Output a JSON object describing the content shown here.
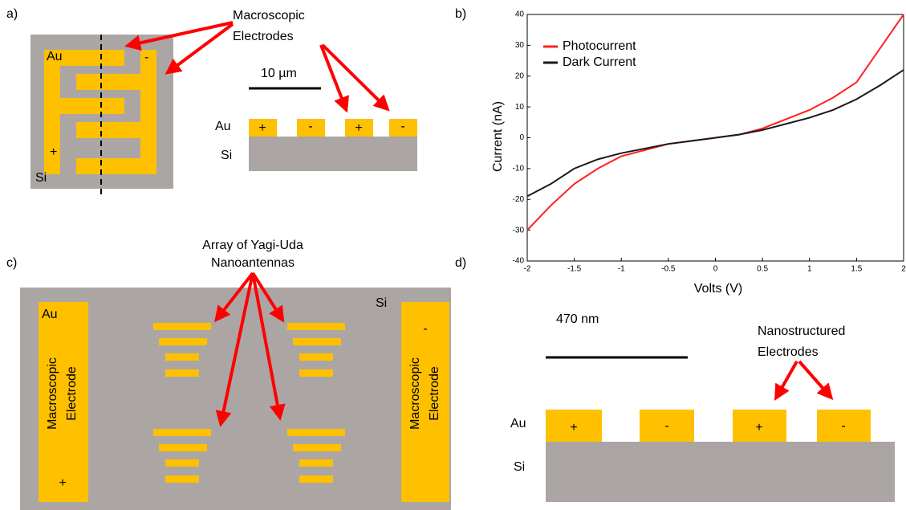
{
  "panels": {
    "a": "a)",
    "b": "b)",
    "c": "c)",
    "d": "d)"
  },
  "panel_a": {
    "annotation": [
      "Macroscopic",
      "Electrodes"
    ],
    "top_au": "Au",
    "top_minus": "-",
    "top_plus": "+",
    "top_si": "Si",
    "scale": "10 µm",
    "cross_au": "Au",
    "cross_si": "Si",
    "signs": [
      "+",
      "-",
      "+",
      "-"
    ]
  },
  "panel_c": {
    "annotation": [
      "Array of Yagi-Uda",
      "Nanoantennas"
    ],
    "au": "Au",
    "si": "Si",
    "left_electrode": [
      "Macroscopic",
      "Electrode"
    ],
    "left_sign": "+",
    "right_sign": "-",
    "right_electrode": [
      "Macroscopic",
      "Electrode"
    ]
  },
  "panel_d": {
    "scale": "470 nm",
    "annotation": [
      "Nanostructured",
      "Electrodes"
    ],
    "au": "Au",
    "si": "Si",
    "signs": [
      "+",
      "-",
      "+",
      "-"
    ]
  },
  "chart_data": {
    "type": "line",
    "x_label": "Volts (V)",
    "y_label": "Current (nA)",
    "x": [
      -2,
      -1.75,
      -1.5,
      -1.25,
      -1,
      -0.75,
      -0.5,
      -0.25,
      0,
      0.25,
      0.5,
      0.75,
      1,
      1.25,
      1.5,
      1.75,
      2
    ],
    "series": [
      {
        "name": "Photocurrent",
        "color": "#ff2020",
        "values": [
          -30,
          -22,
          -15,
          -10,
          -6,
          -4,
          -2,
          -1,
          0,
          1,
          3,
          6,
          9,
          13,
          18,
          29,
          40
        ]
      },
      {
        "name": "Dark Current",
        "color": "#1a1a1a",
        "values": [
          -19,
          -15,
          -10,
          -7,
          -5,
          -3.5,
          -2,
          -1,
          0,
          1,
          2.5,
          4.5,
          6.5,
          9,
          12.5,
          17,
          22
        ]
      }
    ],
    "xlim": [
      -2,
      2
    ],
    "xticks": [
      -2,
      -1.5,
      -1,
      -0.5,
      0,
      0.5,
      1,
      1.5,
      2
    ],
    "ylim": [
      -40,
      40
    ],
    "yticks": [
      -40,
      -30,
      -20,
      -10,
      0,
      10,
      20,
      30,
      40
    ],
    "legend": "upper left"
  }
}
